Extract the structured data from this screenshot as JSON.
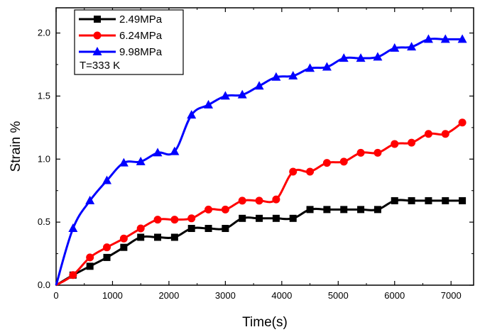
{
  "chart_data": {
    "type": "line",
    "title": "",
    "xlabel": "Time(s)",
    "ylabel": "Strain %",
    "xlim": [
      0,
      7400
    ],
    "ylim": [
      0.0,
      2.2
    ],
    "xticks": [
      "0",
      "1000",
      "2000",
      "3000",
      "4000",
      "5000",
      "6000",
      "7000"
    ],
    "yticks": [
      "0.0",
      "0.5",
      "1.0",
      "1.5",
      "2.0"
    ],
    "grid": false,
    "legend_position": "top-left",
    "annotation": "T=333 K",
    "series": [
      {
        "name": "2.49MPa",
        "color": "#000000",
        "marker": "square",
        "x": [
          0,
          300,
          600,
          900,
          1200,
          1500,
          1800,
          2100,
          2400,
          2700,
          3000,
          3300,
          3600,
          3900,
          4200,
          4500,
          4800,
          5100,
          5400,
          5700,
          6000,
          6300,
          6600,
          6900,
          7200
        ],
        "y": [
          0.0,
          0.08,
          0.15,
          0.22,
          0.3,
          0.38,
          0.38,
          0.38,
          0.45,
          0.45,
          0.45,
          0.53,
          0.53,
          0.53,
          0.53,
          0.6,
          0.6,
          0.6,
          0.6,
          0.6,
          0.67,
          0.67,
          0.67,
          0.67,
          0.67
        ]
      },
      {
        "name": "6.24MPa",
        "color": "#ff0000",
        "marker": "circle",
        "x": [
          0,
          300,
          600,
          900,
          1200,
          1500,
          1800,
          2100,
          2400,
          2700,
          3000,
          3300,
          3600,
          3900,
          4200,
          4500,
          4800,
          5100,
          5400,
          5700,
          6000,
          6300,
          6600,
          6900,
          7200
        ],
        "y": [
          0.0,
          0.08,
          0.22,
          0.3,
          0.37,
          0.45,
          0.52,
          0.52,
          0.53,
          0.6,
          0.6,
          0.67,
          0.67,
          0.68,
          0.9,
          0.9,
          0.97,
          0.98,
          1.05,
          1.05,
          1.12,
          1.13,
          1.2,
          1.2,
          1.29
        ]
      },
      {
        "name": "9.98MPa",
        "color": "#0000ff",
        "marker": "triangle",
        "x": [
          0,
          300,
          600,
          900,
          1200,
          1500,
          1800,
          2100,
          2400,
          2700,
          3000,
          3300,
          3600,
          3900,
          4200,
          4500,
          4800,
          5100,
          5400,
          5700,
          6000,
          6300,
          6600,
          6900,
          7200
        ],
        "y": [
          0.0,
          0.45,
          0.67,
          0.83,
          0.97,
          0.98,
          1.05,
          1.06,
          1.35,
          1.43,
          1.5,
          1.51,
          1.58,
          1.65,
          1.66,
          1.72,
          1.73,
          1.8,
          1.8,
          1.81,
          1.88,
          1.89,
          1.95,
          1.95,
          1.95
        ]
      }
    ]
  }
}
